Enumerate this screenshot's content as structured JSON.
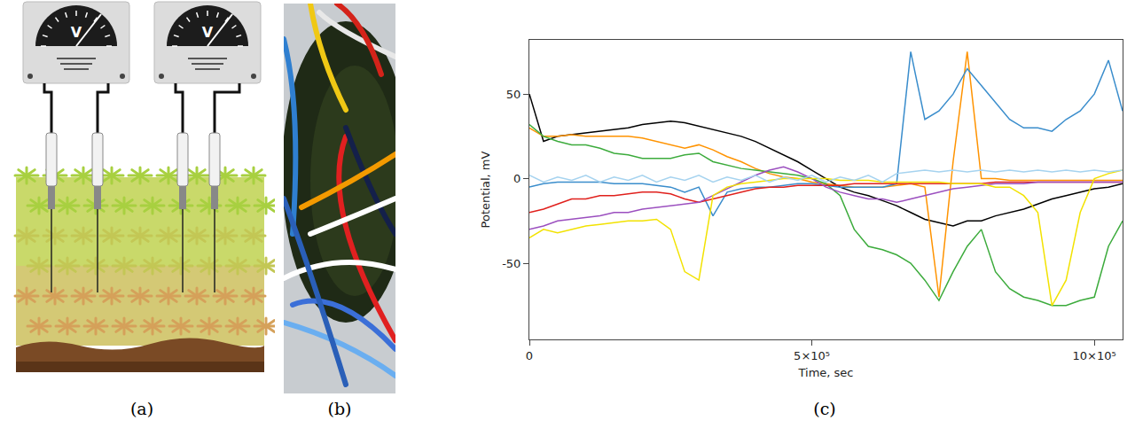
{
  "panel_labels": [
    "(a)",
    "(b)",
    "(c)"
  ],
  "meter_label": "V",
  "chart_data": {
    "type": "line",
    "x_label": "Time, sec",
    "y_label": "Potential, mV",
    "xlim": [
      0,
      1050000
    ],
    "ylim": [
      -95,
      82
    ],
    "xticks": [
      0,
      {
        "value": 500000,
        "label": "5×10⁵"
      },
      {
        "value": 1000000,
        "label": "10×10⁵"
      }
    ],
    "yticks": [
      -50,
      0,
      50
    ],
    "grid": false,
    "x": [
      0,
      25000,
      50000,
      75000,
      100000,
      125000,
      150000,
      175000,
      200000,
      225000,
      250000,
      275000,
      300000,
      325000,
      350000,
      375000,
      400000,
      425000,
      450000,
      475000,
      500000,
      525000,
      550000,
      575000,
      600000,
      625000,
      650000,
      675000,
      700000,
      725000,
      750000,
      775000,
      800000,
      825000,
      850000,
      875000,
      900000,
      925000,
      950000,
      975000,
      1000000,
      1025000,
      1050000
    ],
    "series": [
      {
        "color": "#000000",
        "values": [
          50,
          22,
          25,
          26,
          27,
          28,
          29,
          30,
          32,
          33,
          34,
          33,
          31,
          29,
          27,
          25,
          22,
          18,
          14,
          10,
          5,
          0,
          -5,
          -8,
          -10,
          -13,
          -16,
          -20,
          -24,
          -26,
          -28,
          -25,
          -25,
          -22,
          -20,
          -18,
          -15,
          -12,
          -10,
          -8,
          -6,
          -5,
          -3
        ]
      },
      {
        "color": "#ff9300",
        "values": [
          30,
          25,
          25,
          26,
          25,
          25,
          25,
          25,
          24,
          22,
          20,
          18,
          20,
          17,
          13,
          10,
          6,
          3,
          1,
          0,
          -2,
          -3,
          -4,
          -5,
          -5,
          -5,
          -4,
          -3,
          -5,
          -70,
          10,
          75,
          0,
          0,
          -1,
          -1,
          -1,
          -1,
          -1,
          -1,
          -1,
          -1,
          -1
        ]
      },
      {
        "color": "#3cab3c",
        "values": [
          32,
          25,
          22,
          20,
          20,
          18,
          15,
          14,
          12,
          12,
          12,
          14,
          15,
          10,
          8,
          6,
          5,
          4,
          3,
          2,
          0,
          -3,
          -10,
          -30,
          -40,
          -42,
          -45,
          -50,
          -60,
          -72,
          -55,
          -40,
          -30,
          -55,
          -65,
          -70,
          -72,
          -75,
          -75,
          -72,
          -70,
          -40,
          -25
        ]
      },
      {
        "color": "#3a8dcc",
        "values": [
          -5,
          -3,
          -2,
          -2,
          -2,
          -2,
          -3,
          -3,
          -3,
          -4,
          -5,
          -8,
          -5,
          -22,
          -8,
          -6,
          -5,
          -5,
          -4,
          -3,
          -3,
          -4,
          -5,
          -5,
          -5,
          -5,
          -3,
          75,
          35,
          40,
          50,
          65,
          55,
          45,
          35,
          30,
          30,
          28,
          35,
          40,
          50,
          70,
          40
        ]
      },
      {
        "color": "#e0201c",
        "values": [
          -20,
          -18,
          -15,
          -12,
          -12,
          -10,
          -10,
          -9,
          -8,
          -8,
          -9,
          -12,
          -14,
          -12,
          -10,
          -8,
          -6,
          -5,
          -5,
          -4,
          -4,
          -4,
          -4,
          -3,
          -3,
          -3,
          -3,
          -3,
          -3,
          -3,
          -3,
          -3,
          -3,
          -2,
          -2,
          -2,
          -2,
          -2,
          -2,
          -2,
          -2,
          -2,
          -2
        ]
      },
      {
        "color": "#9b4fbf",
        "values": [
          -30,
          -28,
          -25,
          -24,
          -23,
          -22,
          -20,
          -20,
          -18,
          -17,
          -16,
          -15,
          -14,
          -10,
          -6,
          -2,
          2,
          5,
          7,
          4,
          0,
          -5,
          -8,
          -10,
          -12,
          -12,
          -14,
          -12,
          -10,
          -8,
          -6,
          -5,
          -4,
          -3,
          -3,
          -3,
          -2,
          -2,
          -2,
          -2,
          -2,
          -2,
          -2
        ]
      },
      {
        "color": "#f2e200",
        "values": [
          -35,
          -30,
          -32,
          -30,
          -28,
          -27,
          -26,
          -25,
          -25,
          -24,
          -30,
          -55,
          -60,
          -10,
          -5,
          -3,
          -2,
          -1,
          0,
          0,
          0,
          0,
          -1,
          -1,
          -1,
          -2,
          -2,
          -2,
          -2,
          -2,
          -3,
          -3,
          -3,
          -5,
          -5,
          -10,
          -20,
          -75,
          -60,
          -20,
          0,
          3,
          5
        ]
      },
      {
        "color": "#a6d3ef",
        "values": [
          2,
          -2,
          1,
          -1,
          2,
          -2,
          1,
          -1,
          2,
          -2,
          1,
          -1,
          2,
          -2,
          1,
          -1,
          2,
          -2,
          1,
          -1,
          2,
          -2,
          1,
          -1,
          2,
          -2,
          3,
          4,
          5,
          4,
          5,
          4,
          5,
          4,
          5,
          4,
          5,
          4,
          5,
          4,
          5,
          4,
          5
        ]
      }
    ]
  }
}
